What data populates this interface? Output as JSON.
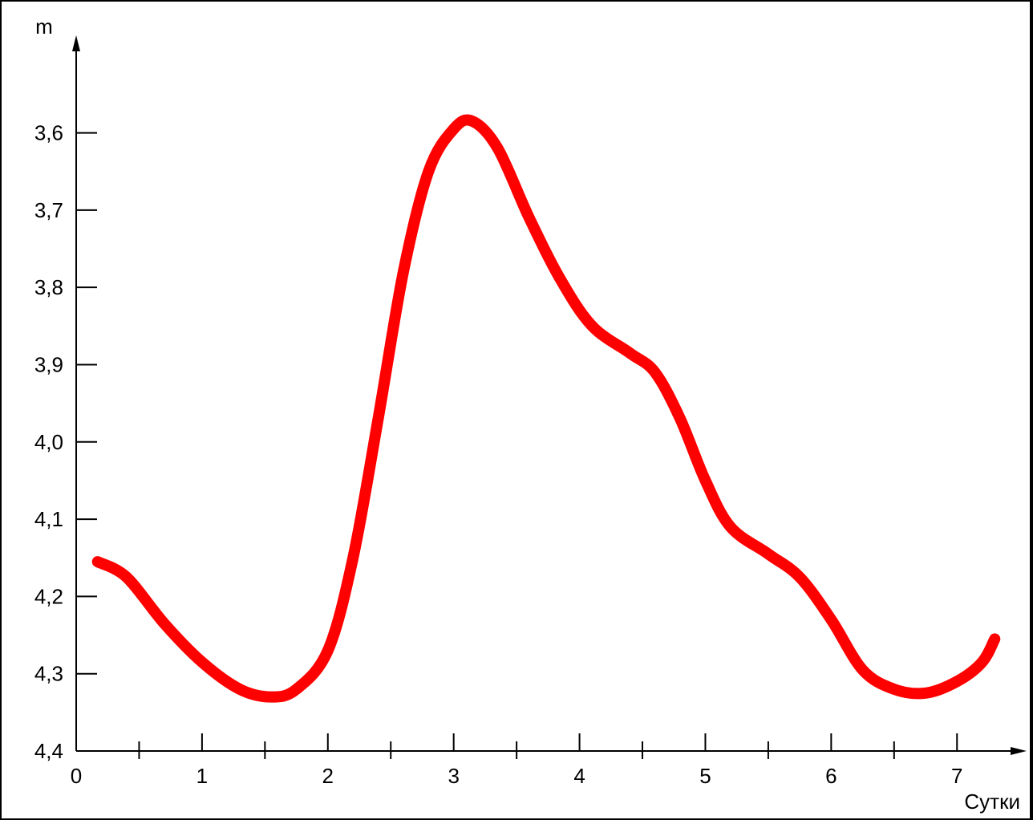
{
  "chart_data": {
    "type": "line",
    "title": "",
    "xlabel": "Сутки",
    "ylabel": "m",
    "y_inverted": true,
    "grid": false,
    "xlim": [
      0,
      7.4
    ],
    "ylim": [
      3.48,
      4.4
    ],
    "x_ticks": [
      {
        "value": 0,
        "label": "0"
      },
      {
        "value": 1,
        "label": "1"
      },
      {
        "value": 2,
        "label": "2"
      },
      {
        "value": 3,
        "label": "3"
      },
      {
        "value": 4,
        "label": "4"
      },
      {
        "value": 5,
        "label": "5"
      },
      {
        "value": 6,
        "label": "6"
      },
      {
        "value": 7,
        "label": "7"
      }
    ],
    "x_minor_ticks": [
      0.5,
      1.5,
      2.5,
      3.5,
      4.5,
      5.5,
      6.5
    ],
    "y_ticks": [
      {
        "value": 3.6,
        "label": "3,6"
      },
      {
        "value": 3.7,
        "label": "3,7"
      },
      {
        "value": 3.8,
        "label": "3,8"
      },
      {
        "value": 3.9,
        "label": "3,9"
      },
      {
        "value": 4.0,
        "label": "4,0"
      },
      {
        "value": 4.1,
        "label": "4,1"
      },
      {
        "value": 4.2,
        "label": "4,2"
      },
      {
        "value": 4.3,
        "label": "4,3"
      },
      {
        "value": 4.4,
        "label": "4,4"
      }
    ],
    "series": [
      {
        "color": "#ff0000",
        "points": [
          [
            0.17,
            4.155
          ],
          [
            0.4,
            4.175
          ],
          [
            0.7,
            4.235
          ],
          [
            1.0,
            4.285
          ],
          [
            1.3,
            4.32
          ],
          [
            1.55,
            4.33
          ],
          [
            1.75,
            4.32
          ],
          [
            2.0,
            4.27
          ],
          [
            2.2,
            4.15
          ],
          [
            2.4,
            3.97
          ],
          [
            2.6,
            3.78
          ],
          [
            2.8,
            3.65
          ],
          [
            3.0,
            3.595
          ],
          [
            3.15,
            3.585
          ],
          [
            3.35,
            3.62
          ],
          [
            3.6,
            3.71
          ],
          [
            3.85,
            3.79
          ],
          [
            4.1,
            3.85
          ],
          [
            4.4,
            3.885
          ],
          [
            4.6,
            3.91
          ],
          [
            4.8,
            3.97
          ],
          [
            5.0,
            4.05
          ],
          [
            5.2,
            4.11
          ],
          [
            5.5,
            4.145
          ],
          [
            5.75,
            4.175
          ],
          [
            6.0,
            4.23
          ],
          [
            6.25,
            4.295
          ],
          [
            6.5,
            4.32
          ],
          [
            6.75,
            4.325
          ],
          [
            7.0,
            4.31
          ],
          [
            7.2,
            4.285
          ],
          [
            7.3,
            4.255
          ]
        ]
      }
    ]
  }
}
